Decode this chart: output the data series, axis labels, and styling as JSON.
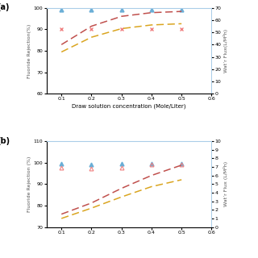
{
  "panel_a": {
    "x": [
      0.1,
      0.2,
      0.3,
      0.4,
      0.5
    ],
    "rejection_blue_y": [
      99,
      99,
      99,
      99,
      99
    ],
    "rejection_pink_y": [
      90,
      90,
      90,
      90,
      90
    ],
    "flux_darkred_y": [
      40,
      55,
      63,
      66,
      67
    ],
    "flux_orange_y": [
      34,
      46,
      53,
      56,
      57
    ],
    "ylim_left": [
      60,
      100
    ],
    "ylim_right": [
      0,
      70
    ],
    "yticks_left": [
      60,
      70,
      80,
      90,
      100
    ],
    "yticks_right": [
      0,
      10,
      20,
      30,
      40,
      50,
      60,
      70
    ],
    "xticks": [
      0.1,
      0.2,
      0.3,
      0.4,
      0.5,
      0.6
    ],
    "xlabel": "Draw solution concentration (Mole/Liter)",
    "ylabel_left": "Fluoride Rejection(%)",
    "ylabel_right": "Wat’r Flux(L/M²h)"
  },
  "panel_b": {
    "x": [
      0.1,
      0.2,
      0.3,
      0.4,
      0.5
    ],
    "rejection_blue_y": [
      99.5,
      99.2,
      99.5,
      99.6,
      99.5
    ],
    "rejection_pink_y": [
      97.5,
      97.2,
      97.5,
      99.0,
      99.0
    ],
    "flux_darkred_y": [
      1.5,
      2.8,
      4.5,
      6.0,
      7.2
    ],
    "flux_orange_y": [
      1.0,
      2.2,
      3.5,
      4.7,
      5.5
    ],
    "ylim_left": [
      70,
      110
    ],
    "ylim_right": [
      0,
      10
    ],
    "yticks_left": [
      70,
      80,
      90,
      100,
      110
    ],
    "yticks_right": [
      0,
      1,
      2,
      3,
      4,
      5,
      6,
      7,
      8,
      9,
      10
    ],
    "xticks": [
      0.1,
      0.2,
      0.3,
      0.4,
      0.5,
      0.6
    ],
    "ylabel_left": "Fluoride Rejection (%)",
    "ylabel_right": "Wat’r Flux (L/M²h)"
  },
  "blue_color": "#6aaed6",
  "pink_color": "#f08080",
  "darkred_color": "#c0504d",
  "orange_color": "#daa520",
  "spine_color": "#aacde8",
  "label_color": "#555555",
  "bg_color": "#ffffff"
}
